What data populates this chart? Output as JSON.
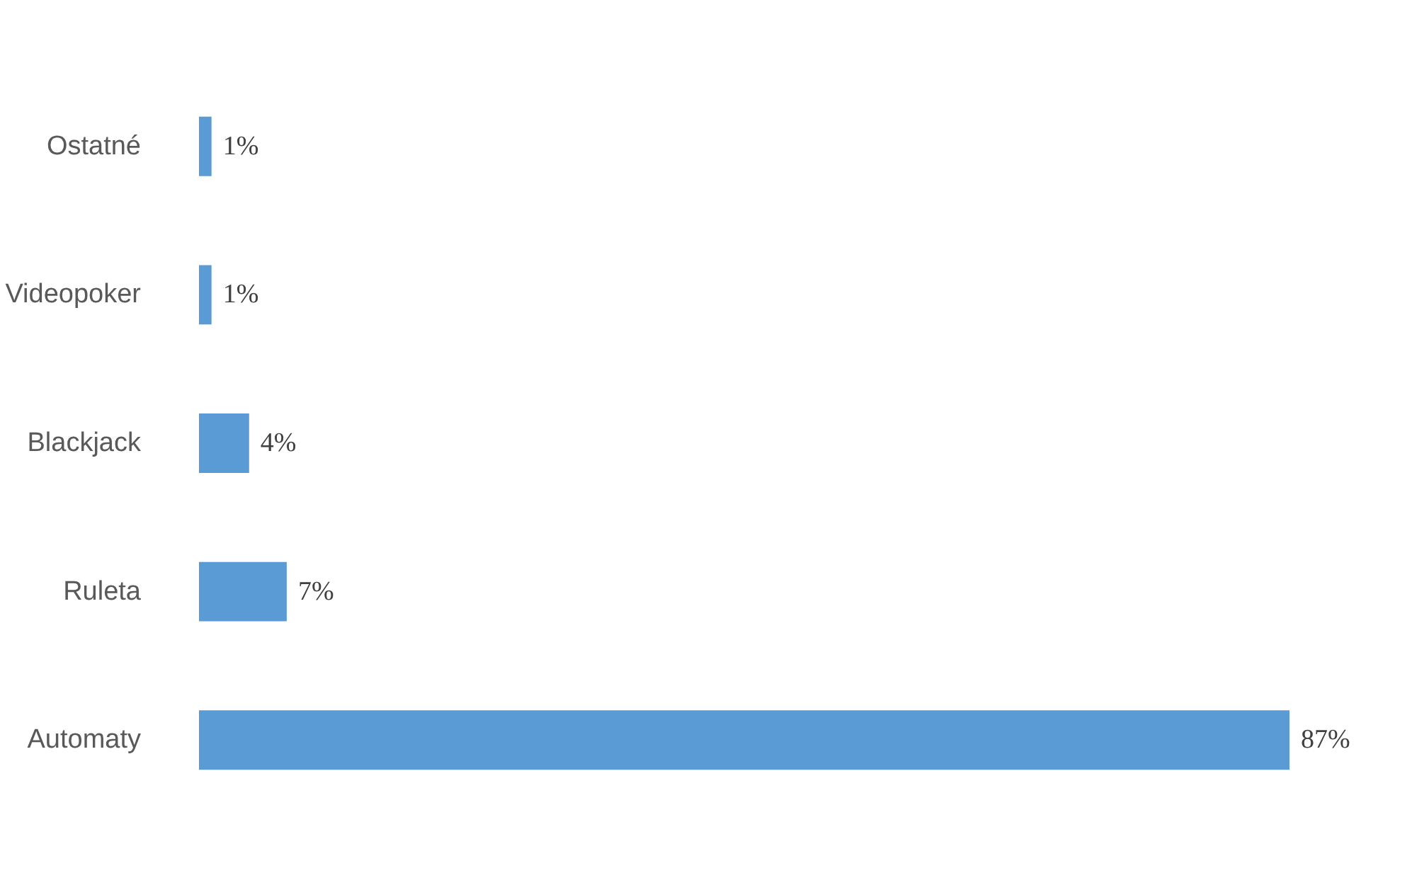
{
  "chart_data": {
    "type": "bar",
    "orientation": "horizontal",
    "categories": [
      "Ostatné",
      "Videopoker",
      "Blackjack",
      "Ruleta",
      "Automaty"
    ],
    "values": [
      1,
      1,
      4,
      7,
      87
    ],
    "value_labels": [
      "1%",
      "1%",
      "4%",
      "7%",
      "87%"
    ],
    "color": "#5b9bd5"
  }
}
